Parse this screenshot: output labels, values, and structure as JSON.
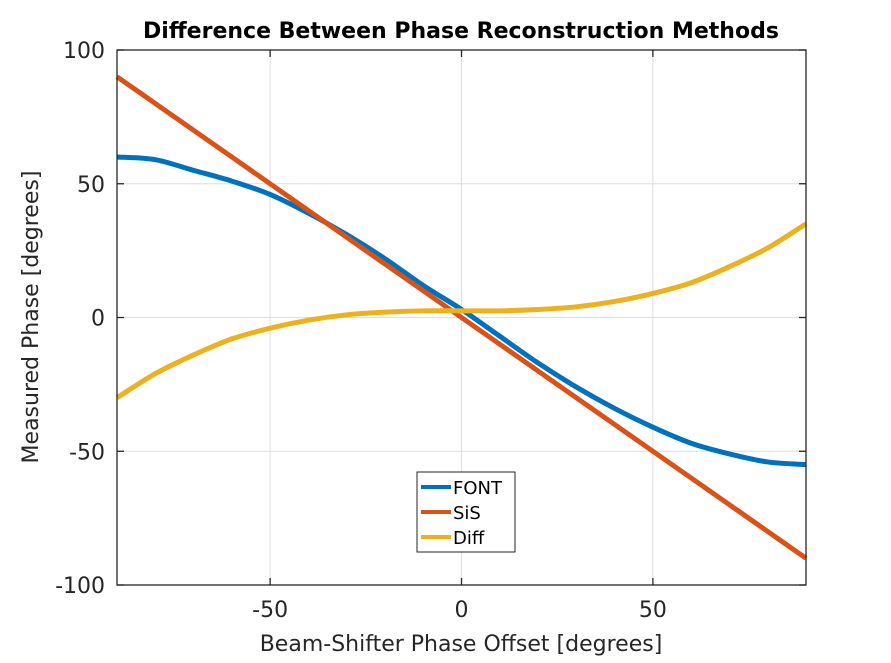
{
  "chart_data": {
    "type": "line",
    "title": "Difference Between Phase Reconstruction Methods",
    "xlabel": "Beam-Shifter Phase Offset [degrees]",
    "ylabel": "Measured Phase [degrees]",
    "xlim": [
      -90,
      90
    ],
    "ylim": [
      -100,
      100
    ],
    "xticks": [
      -50,
      0,
      50
    ],
    "yticks": [
      -100,
      -50,
      0,
      50,
      100
    ],
    "grid": true,
    "legend_position": "bottom-center",
    "x": [
      -90,
      -80,
      -70,
      -60,
      -50,
      -40,
      -30,
      -20,
      -10,
      0,
      10,
      20,
      30,
      40,
      50,
      60,
      70,
      80,
      90
    ],
    "series": [
      {
        "name": "FONT",
        "color": "#0072BD",
        "values": [
          60,
          59,
          55,
          51,
          46,
          39,
          31,
          22,
          12,
          3,
          -7,
          -17,
          -26,
          -34,
          -41,
          -47,
          -51,
          -54,
          -55
        ]
      },
      {
        "name": "SiS",
        "color": "#D95319",
        "values": [
          90,
          80,
          70,
          60,
          50,
          40,
          30,
          20,
          10,
          0,
          -10,
          -20,
          -30,
          -40,
          -50,
          -60,
          -70,
          -80,
          -90
        ]
      },
      {
        "name": "Diff",
        "color": "#EDB120",
        "values": [
          -30,
          -21,
          -14,
          -8,
          -4,
          -1,
          1,
          2,
          2.5,
          2.5,
          2.5,
          3,
          4,
          6,
          9,
          13,
          19,
          26,
          35
        ]
      }
    ]
  }
}
